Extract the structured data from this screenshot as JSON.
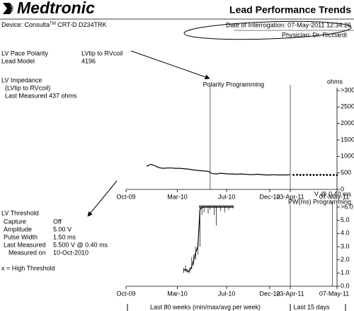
{
  "header": {
    "logo": "Medtronic",
    "title": "Lead Performance Trends",
    "device": "Device: Consulta",
    "device_tm": "TM",
    "device_model": " CRT-D D234TRK",
    "interrogation": "Date of Interrogation: 07-May-2011 12:34:26",
    "physician": "Physician: Dr. Ricciardi"
  },
  "lead": {
    "polarity_label": "LV Pace Polarity",
    "polarity": "LVtip to RVcoil",
    "model_label": "Lead Model",
    "model": "4196"
  },
  "impedance": {
    "title": "LV Impedance",
    "subtitle": "(LVtip to RVcoil)",
    "last_measured": "Last Measured 437 ohms"
  },
  "threshold": {
    "title": "LV Threshold",
    "rows": [
      [
        "Capture",
        "Off"
      ],
      [
        "Amplitude",
        "5.00 V"
      ],
      [
        "Pulse Width",
        "1.50 ms"
      ],
      [
        "Last Measured",
        "5.500 V @ 0.40 ms"
      ],
      [
        "Measured on",
        "10-Oct-2010"
      ]
    ]
  },
  "footer": {
    "weekly": "Last 80 weeks (min/max/avg per week)",
    "daily": "Last 15 days"
  },
  "chart_data": [
    {
      "type": "line",
      "y_label": "ohms",
      "xlim": [
        0,
        82
      ],
      "xticks": [
        {
          "value": 0,
          "label": "Oct-09"
        },
        {
          "value": 25,
          "label": "Mar-10"
        },
        {
          "value": 49,
          "label": "Jul-10"
        },
        {
          "value": 70,
          "label": "Dec-10"
        },
        {
          "value": 80,
          "label": "23-Apr-11"
        },
        {
          "value": 82,
          "label": "07-May-11"
        }
      ],
      "ylim": [
        0,
        3000
      ],
      "yticks": [
        0,
        500,
        1000,
        1500,
        2000,
        2500,
        {
          "value": 3000,
          "label": ">3000"
        }
      ],
      "annotations": [
        {
          "text": "Polarity Programming",
          "x": 41
        }
      ],
      "series": [
        {
          "color": "#000000",
          "style": "line",
          "x": [
            10,
            12,
            14,
            16,
            18,
            20,
            22,
            24,
            26,
            28,
            30,
            32,
            34,
            36,
            38,
            40,
            42,
            44,
            46,
            48,
            50,
            52,
            54,
            56,
            58,
            60,
            62,
            64,
            66,
            68,
            70,
            72,
            74,
            76,
            78,
            80
          ],
          "values": [
            700,
            760,
            720,
            660,
            640,
            650,
            650,
            640,
            640,
            630,
            620,
            600,
            580,
            570,
            560,
            550,
            480,
            470,
            490,
            480,
            470,
            470,
            460,
            470,
            460,
            450,
            450,
            460,
            450,
            440,
            440,
            445,
            440,
            440,
            440,
            445
          ]
        },
        {
          "color": "#000000",
          "style": "dots",
          "x": [
            80.14,
            80.29,
            80.43,
            80.57,
            80.71,
            80.86,
            81,
            81.14,
            81.29,
            81.43,
            81.57,
            81.71,
            81.86,
            82
          ],
          "values": [
            440,
            445,
            440,
            440,
            445,
            440,
            440,
            440,
            445,
            440,
            440,
            440,
            440,
            437
          ]
        }
      ]
    },
    {
      "type": "line",
      "y_label": "V @ 0.40 ms",
      "xlim": [
        0,
        82
      ],
      "xticks": [
        {
          "value": 0,
          "label": "Oct-09"
        },
        {
          "value": 25,
          "label": "Mar-10"
        },
        {
          "value": 49,
          "label": "Jul-10"
        },
        {
          "value": 70,
          "label": "Dec-10"
        },
        {
          "value": 80,
          "label": "23-Apr-11"
        },
        {
          "value": 82,
          "label": "07-May-11"
        }
      ],
      "ylim": [
        0,
        6
      ],
      "yticks": [
        {
          "value": 0,
          "label": "0.0"
        },
        {
          "value": 1,
          "label": "1.0"
        },
        {
          "value": 2,
          "label": "2.0"
        },
        {
          "value": 3,
          "label": "3.0"
        },
        {
          "value": 4,
          "label": "4.0"
        },
        {
          "value": 5,
          "label": "5.0"
        },
        {
          "value": 6,
          "label": ">6.0"
        }
      ],
      "annotations": [
        {
          "text": "PW(ms) Programming",
          "x": 81.8
        }
      ],
      "series": [
        {
          "color": "#000000",
          "style": "whisker",
          "x": [
            28,
            29,
            30,
            31,
            32,
            33,
            34,
            35,
            36,
            37,
            38,
            39,
            40,
            41,
            42,
            43,
            44,
            45,
            46,
            47,
            48,
            49,
            50,
            51,
            52
          ],
          "values": [
            1.2,
            1.3,
            1.1,
            1.2,
            1.5,
            2.0,
            2.6,
            3.0,
            5.8,
            6,
            6,
            6,
            6,
            6,
            6,
            6,
            6,
            6,
            6,
            6,
            6,
            6,
            6,
            6,
            6
          ],
          "min": [
            1.0,
            1.1,
            1.0,
            1.0,
            1.3,
            1.6,
            2.0,
            2.4,
            3.0,
            5.4,
            5.6,
            6,
            5.5,
            5.8,
            6,
            5.4,
            4.6,
            6,
            5.7,
            6,
            5.6,
            6,
            5.8,
            6,
            5.9
          ],
          "max": [
            1.4,
            1.6,
            1.3,
            1.4,
            2.2,
            2.4,
            3.0,
            3.3,
            6,
            6,
            6,
            6,
            6,
            6,
            6,
            6,
            6,
            6,
            6,
            6,
            6,
            6,
            6,
            6,
            6
          ]
        },
        {
          "name": "x = High Threshold",
          "color": "#000000",
          "style": "x",
          "x": [
            36,
            37,
            38,
            39,
            40,
            41,
            42,
            43,
            44,
            45,
            46,
            47,
            48,
            49,
            50,
            51,
            52
          ],
          "values": [
            6,
            6,
            6,
            6,
            6,
            6,
            6,
            6,
            6,
            6,
            6,
            6,
            6,
            6,
            6,
            6,
            6
          ]
        }
      ]
    }
  ]
}
